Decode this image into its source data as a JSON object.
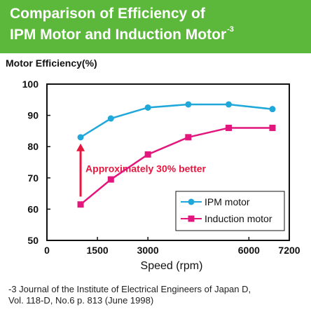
{
  "header": {
    "title_line1": "Comparison of Efficiency of",
    "title_line2": "IPM Motor and Induction Motor",
    "title_sup": "-3",
    "background": "#5bb83a"
  },
  "chart_data": {
    "type": "line",
    "title": "",
    "ylabel": "Motor Efficiency(%)",
    "xlabel": "Speed (rpm)",
    "xlim": [
      0,
      7200
    ],
    "ylim": [
      50,
      100
    ],
    "x_ticks": [
      0,
      1500,
      3000,
      6000,
      7200
    ],
    "x_tick_labels": [
      "0",
      "1500",
      "3000",
      "6000",
      "7200"
    ],
    "y_ticks": [
      50,
      60,
      70,
      80,
      90,
      100
    ],
    "y_tick_labels": [
      "50",
      "60",
      "70",
      "80",
      "90",
      "100"
    ],
    "grid": false,
    "legend_position": "bottom-right",
    "series": [
      {
        "name": "IPM motor",
        "color": "#1fa8d9",
        "marker": "circle",
        "x": [
          1000,
          1900,
          3000,
          4200,
          5400,
          6700
        ],
        "y": [
          83,
          89,
          92.5,
          93.5,
          93.5,
          92
        ]
      },
      {
        "name": "Induction motor",
        "color": "#e2167c",
        "marker": "square",
        "x": [
          1000,
          1900,
          3000,
          4200,
          5400,
          6700
        ],
        "y": [
          61.5,
          69.5,
          77.5,
          83,
          86,
          86
        ]
      }
    ],
    "annotation": {
      "text": "Approximately 30% better",
      "color": "#e5173f",
      "arrow_x": 1000,
      "arrow_from_y": 64,
      "arrow_to_y": 81
    }
  },
  "footnote": {
    "line1": "-3 Journal of the Institute of Electrical Engineers of Japan D,",
    "line2": "Vol. 118-D, No.6 p. 813 (June 1998)"
  }
}
